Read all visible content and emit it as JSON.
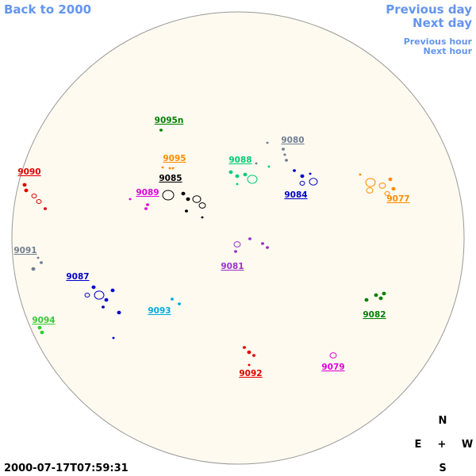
{
  "nav": {
    "back": "Back to 2000",
    "previous_day": "Previous day",
    "next_day": "Next day",
    "previous_hour": "Previous hour",
    "next_hour": "Next hour"
  },
  "timestamp": "2000-07-17T07:59:31",
  "compass": {
    "north": "N",
    "east": "E",
    "center": "+",
    "west": "W",
    "south": "S"
  },
  "regions": [
    {
      "label": "9095n",
      "color": "#008000"
    },
    {
      "label": "9080",
      "color": "#708090"
    },
    {
      "label": "9095",
      "color": "#ff8c00"
    },
    {
      "label": "9088",
      "color": "#00cc77"
    },
    {
      "label": "9090",
      "color": "#dd0000"
    },
    {
      "label": "9085",
      "color": "#000000"
    },
    {
      "label": "9084",
      "color": "#0000cc"
    },
    {
      "label": "9089",
      "color": "#dd00dd"
    },
    {
      "label": "9077",
      "color": "#ff8c00"
    },
    {
      "label": "9091",
      "color": "#708090"
    },
    {
      "label": "9081",
      "color": "#9933cc"
    },
    {
      "label": "9087",
      "color": "#0000cc"
    },
    {
      "label": "9093",
      "color": "#00aadd"
    },
    {
      "label": "9082",
      "color": "#008000"
    },
    {
      "label": "9094",
      "color": "#33cc33"
    },
    {
      "label": "9092",
      "color": "#dd0000"
    },
    {
      "label": "9079",
      "color": "#dd00dd"
    }
  ]
}
